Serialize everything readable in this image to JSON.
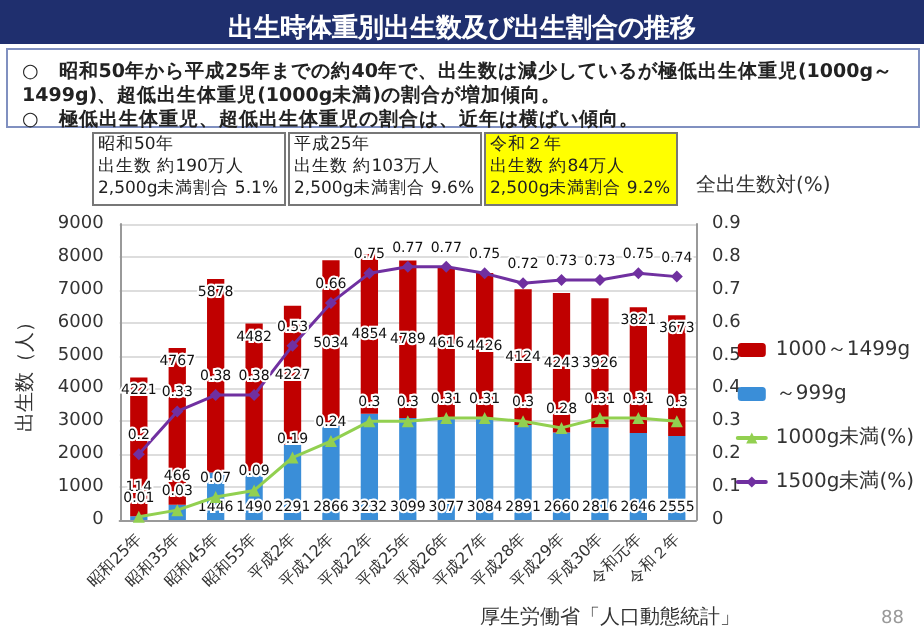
{
  "chart_data": {
    "type": "bar",
    "title": "出生時体重別出生数及び出生割合の推移",
    "subtitle": "○　昭和50年から平成25年までの約40年で、出生数は減少しているが極低出生体重児(1000g～1499g)、超低出生体重児(1000g未満)の割合が増加傾向。\n○　極低出生体重児、超低出生体重児の割合は、近年は横ばい傾向。",
    "categories": [
      "昭和25年",
      "昭和35年",
      "昭和45年",
      "昭和55年",
      "平成2年",
      "平成12年",
      "平成22年",
      "平成25年",
      "平成26年",
      "平成27年",
      "平成28年",
      "平成29年",
      "平成30年",
      "令和元年",
      "令和２年"
    ],
    "stacked": true,
    "series": [
      {
        "name": "～999g",
        "color": "#3a8ed8",
        "values": [
          114,
          466,
          1446,
          1490,
          2291,
          2866,
          3232,
          3099,
          3077,
          3084,
          2891,
          2660,
          2816,
          2646,
          2555
        ]
      },
      {
        "name": "1000～1499g",
        "color": "#c00000",
        "values": [
          4221,
          4767,
          5878,
          4482,
          4227,
          5034,
          4854,
          4789,
          4616,
          4426,
          4124,
          4243,
          3926,
          3821,
          3673
        ]
      },
      {
        "name": "1000g未満(%)",
        "type": "line",
        "axis": "y2",
        "marker": "triangle",
        "color": "#92d050",
        "values": [
          0.01,
          0.03,
          0.07,
          0.09,
          0.19,
          0.24,
          0.3,
          0.3,
          0.31,
          0.31,
          0.3,
          0.28,
          0.31,
          0.31,
          0.3
        ]
      },
      {
        "name": "1500g未満(%)",
        "type": "line",
        "axis": "y2",
        "marker": "diamond",
        "color": "#7030a0",
        "values": [
          0.2,
          0.33,
          0.38,
          0.38,
          0.53,
          0.66,
          0.75,
          0.77,
          0.77,
          0.75,
          0.72,
          0.73,
          0.73,
          0.75,
          0.74
        ]
      }
    ],
    "ylabel": "出生数（人）",
    "y2label": "全出生数対(%)",
    "ylim": [
      0,
      9000
    ],
    "yticks": [
      0,
      1000,
      2000,
      3000,
      4000,
      5000,
      6000,
      7000,
      8000,
      9000
    ],
    "y2lim": [
      0,
      0.9
    ],
    "y2ticks": [
      0,
      0.1,
      0.2,
      0.3,
      0.4,
      0.5,
      0.6,
      0.7,
      0.8,
      0.9
    ],
    "grid": "y",
    "legend": "right",
    "data_labels": true,
    "annotations": [
      "昭和50年",
      "出生数 約190万人",
      "2,500g未満割合 5.1%",
      "平成25年",
      "出生数 約103万人",
      "2,500g未満割合 9.6%",
      "令和２年",
      "出生数 約84万人",
      "2,500g未満割合 9.2%",
      "厚生労働省「人口動態統計」",
      "88"
    ]
  }
}
